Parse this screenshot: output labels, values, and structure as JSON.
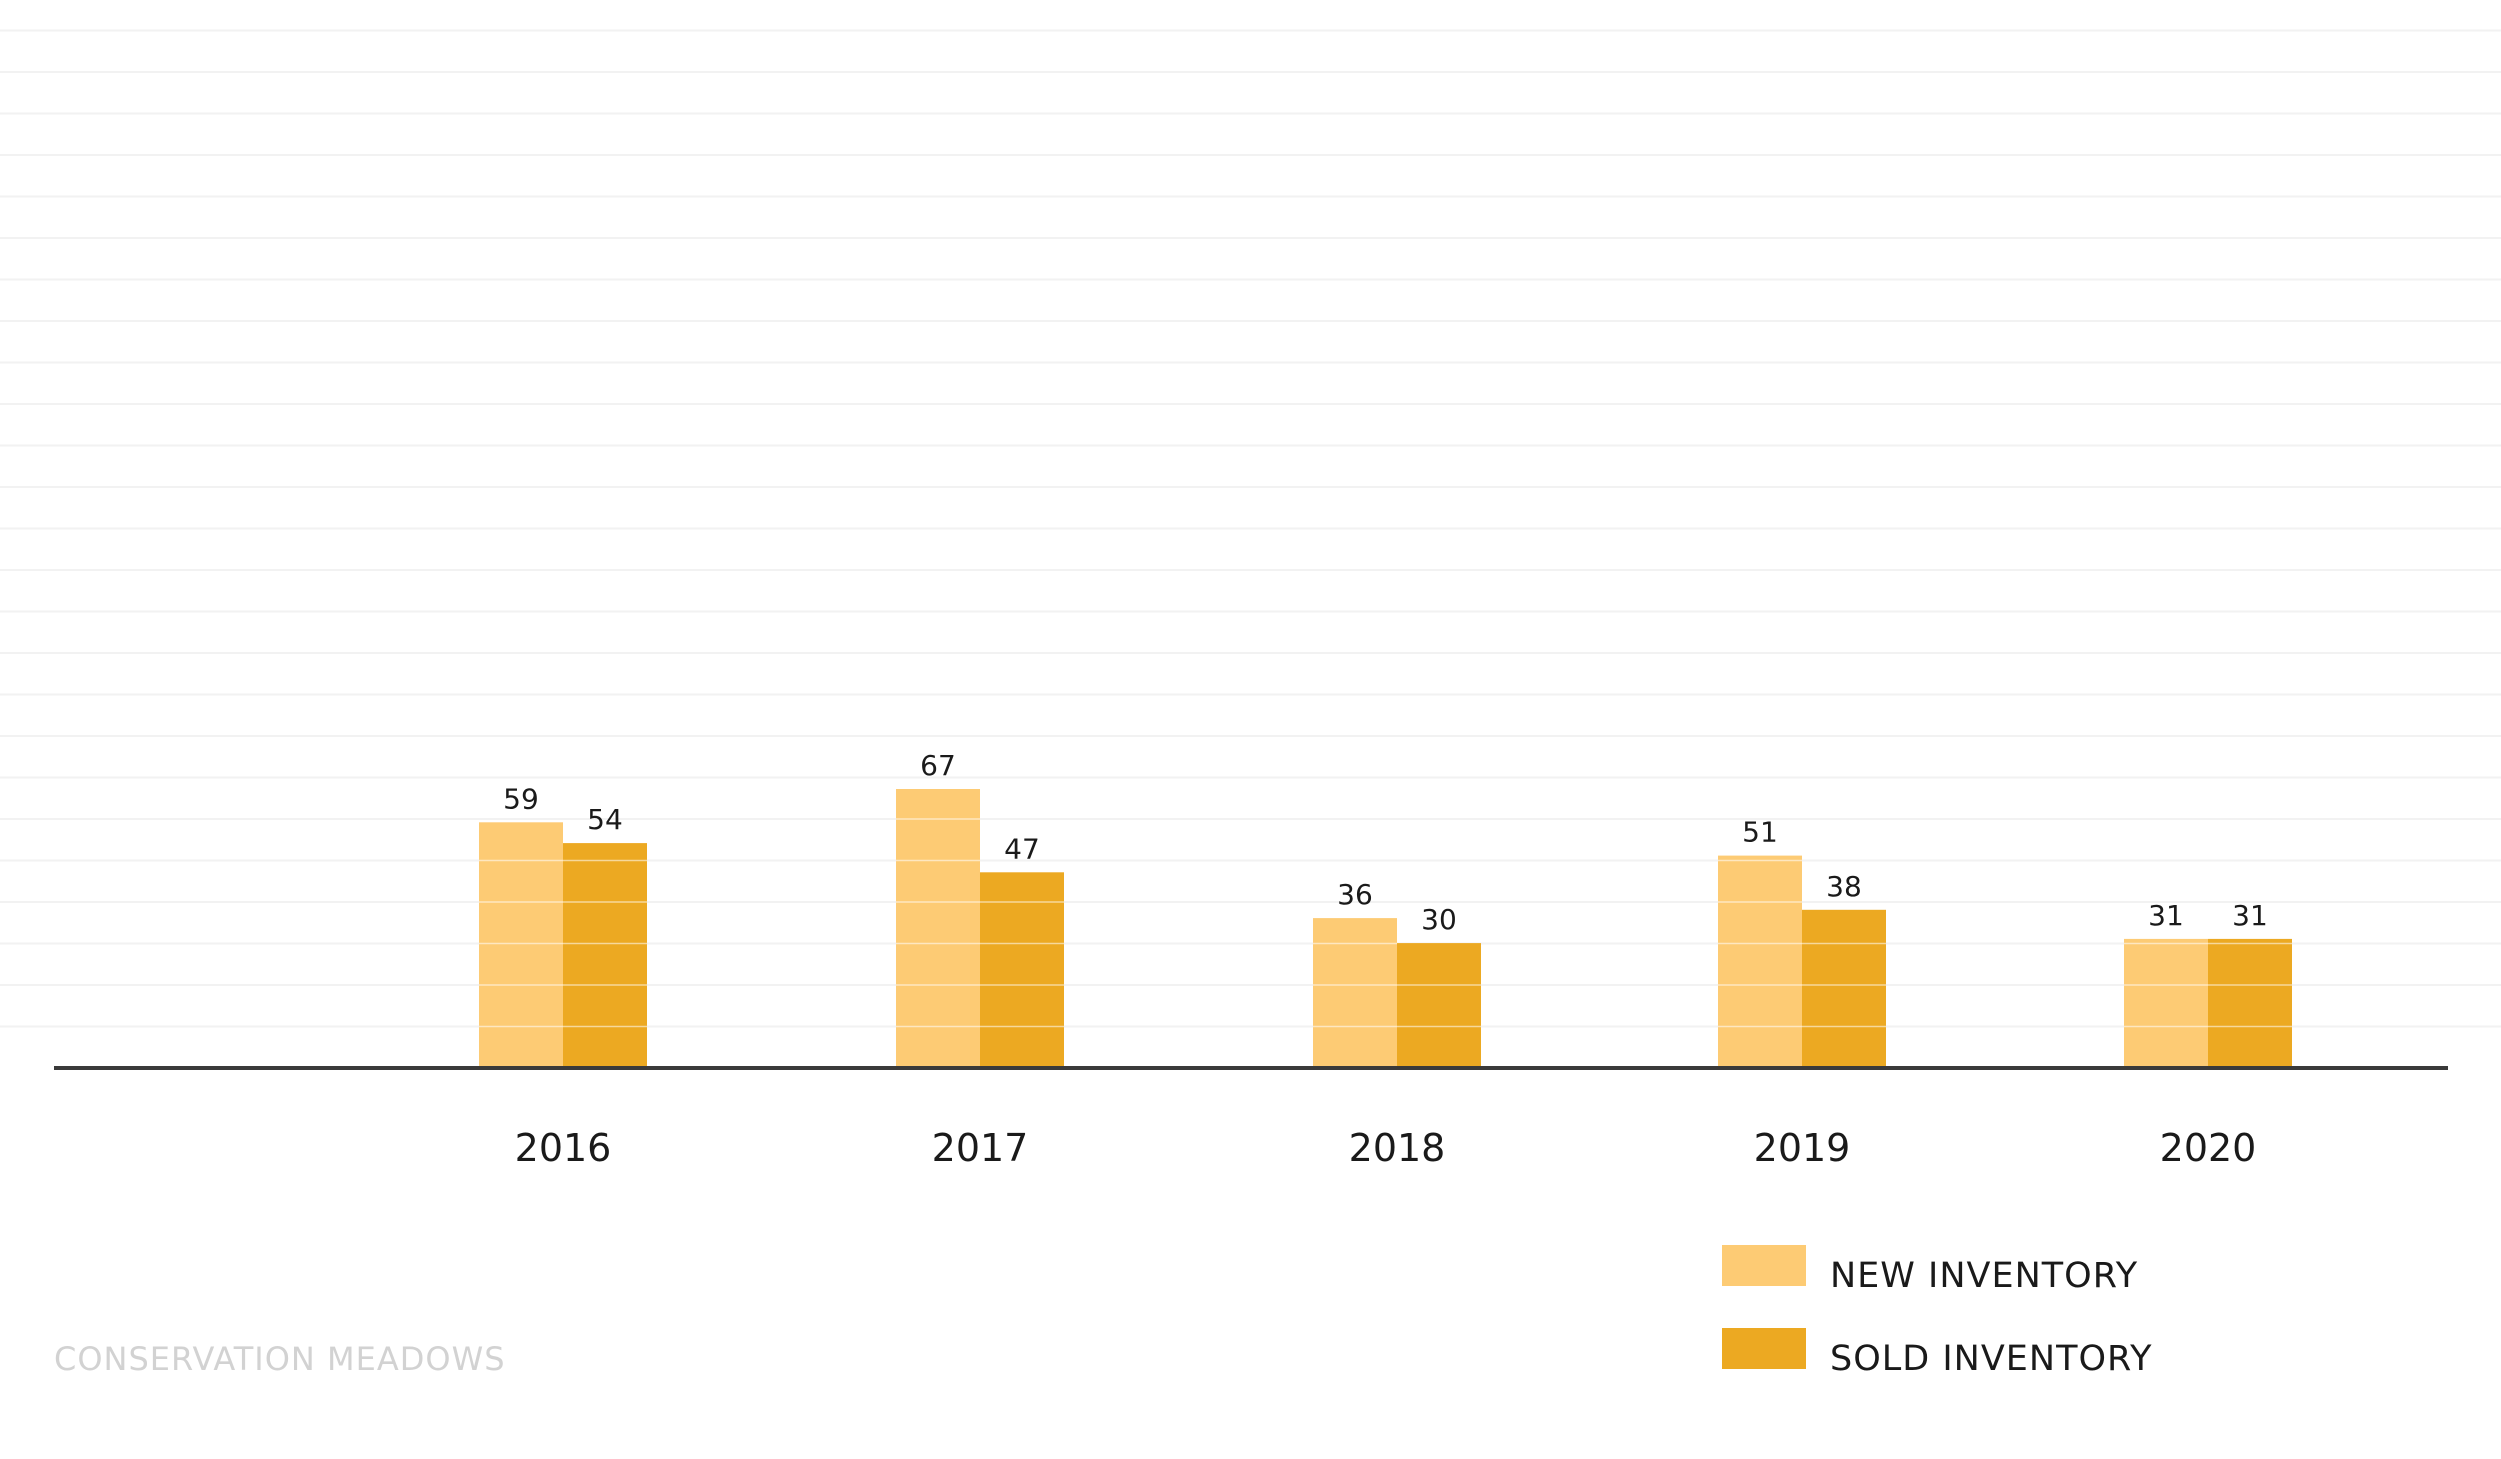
{
  "chart_data": {
    "type": "bar",
    "categories": [
      "2016",
      "2017",
      "2018",
      "2019",
      "2020"
    ],
    "series": [
      {
        "name": "NEW INVENTORY",
        "values": [
          59,
          67,
          36,
          51,
          31
        ],
        "color": "#fdcb74"
      },
      {
        "name": "SOLD INVENTORY",
        "values": [
          54,
          47,
          30,
          38,
          31
        ],
        "color": "#eca922"
      }
    ],
    "ylim": [
      0,
      67
    ],
    "grid": true,
    "legend": "bottom-right"
  },
  "footer": {
    "text": "CONSERVATION MEADOWS"
  }
}
